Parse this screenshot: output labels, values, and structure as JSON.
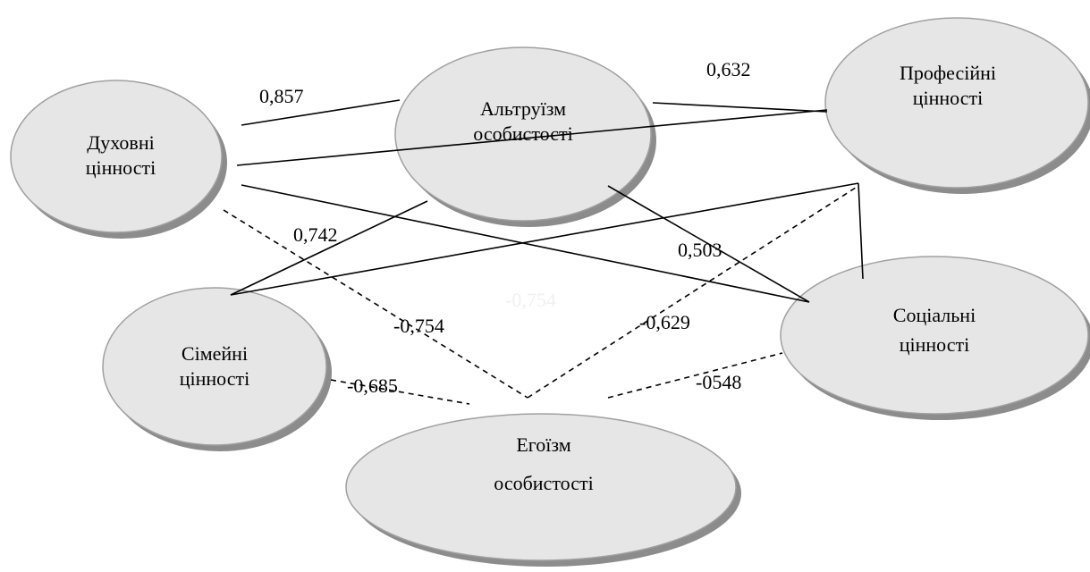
{
  "nodes": [
    {
      "label": [
        "Духовні",
        "цінності"
      ]
    },
    {
      "label": [
        "Альтруїзм",
        "особистості"
      ]
    },
    {
      "label": [
        "Професійні",
        "цінності"
      ]
    },
    {
      "label": [
        "Сімейні",
        "цінності"
      ]
    },
    {
      "label": [
        "Соціальні",
        "цінності"
      ]
    },
    {
      "label": [
        "Егоїзм",
        "особистості"
      ]
    }
  ],
  "edges": [
    {
      "label": "0,857"
    },
    {
      "label": "0,632"
    },
    {
      "label": "0,503"
    },
    {
      "label": "0,742"
    },
    {
      "label": "-0,754"
    },
    {
      "label": "-0,685"
    },
    {
      "label": "-0,629"
    },
    {
      "label": "-0548"
    },
    {
      "label": "-0,754"
    }
  ]
}
